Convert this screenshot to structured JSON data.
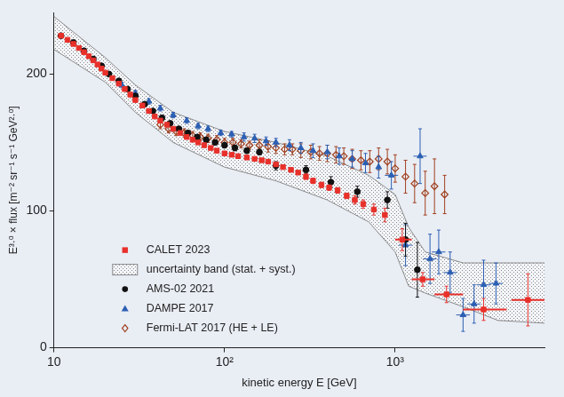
{
  "chart_data": {
    "type": "scatter",
    "x_label": "kinetic energy E [GeV]",
    "y_label": "E³·⁰ × flux [m⁻² sr⁻¹ s⁻¹ GeV²·⁰]",
    "log": "x",
    "grid": false,
    "legend": "lower left",
    "xlim": [
      10,
      7500
    ],
    "xticks": [
      10,
      {
        "value": 100,
        "label": "10²"
      },
      {
        "value": 1000,
        "label": "10³"
      }
    ],
    "ylim": [
      0,
      245
    ],
    "yticks": [
      0,
      100,
      200
    ],
    "series": [
      {
        "name": "CALET 2023",
        "color": "#e8302a",
        "marker": "square",
        "x": [
          11,
          12,
          13,
          14,
          15,
          16,
          17,
          18,
          19,
          20,
          22,
          24,
          26,
          28,
          30,
          33,
          36,
          39,
          42,
          46,
          50,
          55,
          60,
          65,
          70,
          76,
          83,
          90,
          100,
          110,
          120,
          135,
          150,
          165,
          180,
          200,
          220,
          245,
          270,
          300,
          330,
          370,
          410,
          460,
          520,
          580,
          650,
          750,
          870,
          1100,
          1450,
          2000,
          3300,
          6000
        ],
        "values": [
          228,
          225,
          222,
          219,
          216,
          213,
          210,
          207,
          204,
          201,
          197,
          193,
          189,
          185,
          181,
          177,
          173,
          169,
          166,
          163,
          160,
          157,
          154,
          152,
          150,
          148,
          146,
          144,
          142,
          141,
          140,
          139,
          138,
          137,
          136,
          134,
          132,
          130,
          128,
          125,
          122,
          119,
          117,
          115,
          111,
          108,
          105,
          101,
          97,
          79,
          50,
          39,
          28,
          35
        ],
        "yerr": [
          1,
          1,
          1,
          1,
          1,
          1,
          1,
          1,
          1,
          1,
          1,
          1,
          1,
          1,
          1,
          1,
          1,
          1,
          1,
          1,
          1,
          1,
          1,
          1,
          1,
          1,
          1,
          1,
          1,
          1,
          1,
          1,
          1,
          1,
          1,
          1,
          1,
          1,
          1,
          2,
          2,
          2,
          2,
          2,
          2,
          3,
          3,
          4,
          5,
          8,
          5,
          6,
          8,
          19
        ],
        "x_range": [
          null,
          null,
          null,
          null,
          null,
          null,
          null,
          null,
          null,
          null,
          null,
          null,
          null,
          null,
          null,
          null,
          null,
          null,
          null,
          null,
          null,
          null,
          null,
          null,
          null,
          null,
          null,
          null,
          null,
          null,
          null,
          null,
          null,
          null,
          null,
          null,
          null,
          null,
          null,
          null,
          null,
          null,
          null,
          null,
          null,
          null,
          null,
          null,
          null,
          [
            1000,
            1250
          ],
          [
            1250,
            1700
          ],
          [
            1700,
            2500
          ],
          [
            2500,
            4500
          ],
          [
            4800,
            7500
          ]
        ]
      },
      {
        "name": "uncertainty band (stat. + syst.)",
        "type": "band",
        "color": "#8a8a8a",
        "x": [
          10,
          20,
          30,
          50,
          100,
          200,
          400,
          700,
          1000,
          1200,
          1500,
          2500,
          4000,
          7500
        ],
        "lower": [
          218,
          194,
          172,
          150,
          132,
          122,
          108,
          92,
          70,
          45,
          40,
          30,
          20,
          18
        ],
        "upper": [
          242,
          212,
          192,
          172,
          158,
          150,
          140,
          126,
          112,
          88,
          70,
          62,
          62,
          62
        ]
      },
      {
        "name": "AMS-02 2021",
        "color": "#111111",
        "marker": "circle",
        "x": [
          11,
          13,
          15,
          17,
          19,
          21,
          24,
          27,
          30,
          34,
          38,
          43,
          48,
          54,
          61,
          69,
          78,
          88,
          100,
          115,
          135,
          160,
          200,
          300,
          420,
          600,
          900,
          1150,
          1350
        ],
        "values": [
          228,
          223,
          217,
          211,
          206,
          200,
          195,
          189,
          184,
          178,
          173,
          168,
          164,
          160,
          157,
          154,
          152,
          150,
          148,
          146,
          144,
          143,
          133,
          130,
          121,
          114,
          108,
          79,
          57
        ],
        "yerr": [
          1,
          1,
          1,
          1,
          1,
          1,
          1,
          1,
          1,
          1,
          1,
          1,
          1,
          1,
          1,
          1,
          1,
          1,
          2,
          2,
          2,
          2,
          3,
          3,
          4,
          4,
          6,
          12,
          20
        ]
      },
      {
        "name": "DAMPE 2017",
        "color": "#2c5fb3",
        "marker": "triangle",
        "x": [
          25,
          30,
          36,
          42,
          50,
          60,
          70,
          80,
          95,
          110,
          130,
          150,
          175,
          200,
          240,
          280,
          330,
          400,
          470,
          560,
          670,
          800,
          950,
          1150,
          1400,
          1600,
          1800,
          2100,
          2500,
          2900,
          3300,
          3900
        ],
        "values": [
          192,
          186,
          180,
          175,
          170,
          166,
          162,
          160,
          157,
          156,
          154,
          153,
          151,
          150,
          148,
          146,
          144,
          143,
          140,
          138,
          135,
          132,
          126,
          75,
          140,
          65,
          70,
          55,
          24,
          32,
          46,
          47
        ],
        "yerr": [
          2,
          2,
          2,
          2,
          2,
          2,
          2,
          2,
          2,
          2,
          3,
          3,
          3,
          3,
          4,
          4,
          5,
          5,
          6,
          6,
          7,
          8,
          10,
          15,
          20,
          18,
          16,
          15,
          12,
          14,
          18,
          15
        ],
        "x_range": [
          null,
          null,
          null,
          null,
          null,
          null,
          null,
          null,
          null,
          null,
          null,
          null,
          null,
          null,
          null,
          null,
          null,
          null,
          null,
          null,
          null,
          null,
          [
            870,
            1040
          ],
          [
            1050,
            1260
          ],
          [
            1280,
            1530
          ],
          [
            1460,
            1750
          ],
          [
            1640,
            1970
          ],
          [
            1920,
            2300
          ],
          [
            2280,
            2740
          ],
          [
            2650,
            3170
          ],
          [
            3020,
            3610
          ],
          [
            3560,
            4270
          ]
        ]
      },
      {
        "name": "Fermi-LAT 2017 (HE + LE)",
        "color": "#a0401f",
        "marker": "open-diamond",
        "x": [
          42,
          47,
          52,
          58,
          65,
          72,
          80,
          90,
          100,
          112,
          125,
          140,
          160,
          180,
          200,
          225,
          250,
          280,
          320,
          360,
          400,
          450,
          500,
          560,
          630,
          710,
          800,
          900,
          1000,
          1150,
          1300,
          1500,
          1700,
          1950
        ],
        "values": [
          163,
          160,
          158,
          157,
          155,
          154,
          153,
          152,
          150,
          150,
          149,
          148,
          148,
          147,
          146,
          145,
          145,
          144,
          143,
          142,
          142,
          141,
          140,
          138,
          137,
          136,
          138,
          136,
          131,
          125,
          120,
          113,
          118,
          112
        ],
        "yerr": [
          3,
          3,
          3,
          3,
          3,
          3,
          3,
          3,
          3,
          3,
          3,
          3,
          4,
          4,
          4,
          4,
          4,
          5,
          5,
          5,
          6,
          6,
          6,
          7,
          7,
          8,
          8,
          9,
          10,
          12,
          14,
          16,
          20,
          14
        ]
      }
    ]
  }
}
